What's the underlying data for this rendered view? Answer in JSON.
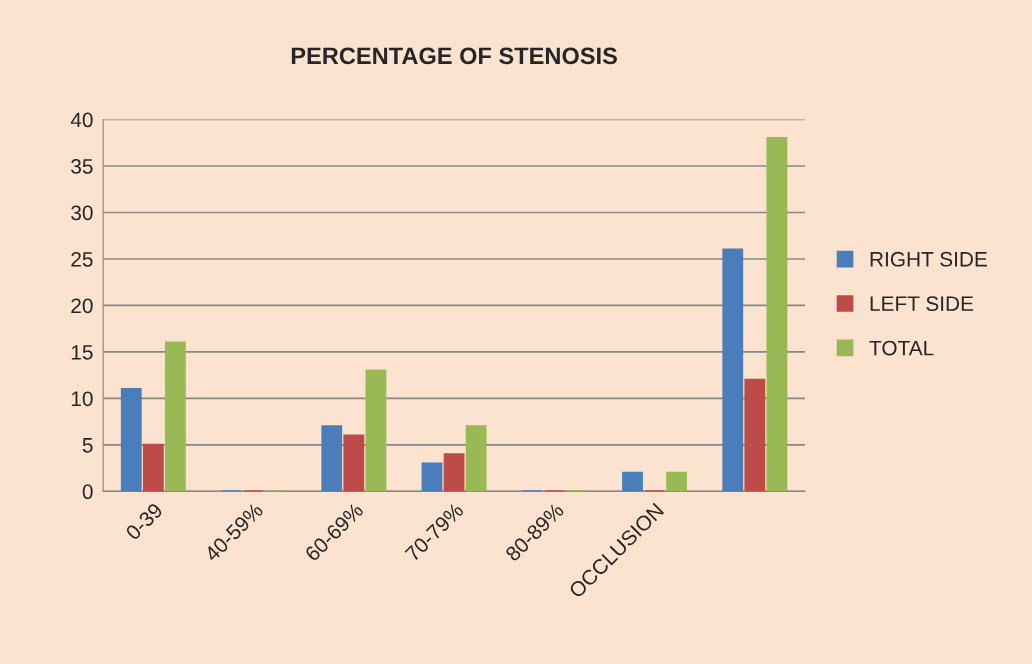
{
  "chart_data": {
    "type": "bar",
    "title": "PERCENTAGE OF STENOSIS",
    "categories": [
      "0-39",
      "40-59%",
      "60-69%",
      "70-79%",
      "80-89%",
      "OCCLUSION",
      null
    ],
    "series": [
      {
        "name": "RIGHT SIDE",
        "color": "#4a7ebb",
        "values": [
          11,
          0,
          7,
          3,
          0,
          2,
          26
        ]
      },
      {
        "name": "LEFT SIDE",
        "color": "#be4b48",
        "values": [
          5,
          0,
          6,
          4,
          0,
          0,
          12
        ]
      },
      {
        "name": "TOTAL",
        "color": "#98b954",
        "values": [
          16,
          0,
          13,
          7,
          0,
          2,
          38
        ]
      }
    ],
    "ylim": [
      0,
      40
    ],
    "yticks": [
      0,
      5,
      10,
      15,
      20,
      25,
      30,
      35,
      40
    ],
    "grid": "y",
    "legend": "right"
  }
}
